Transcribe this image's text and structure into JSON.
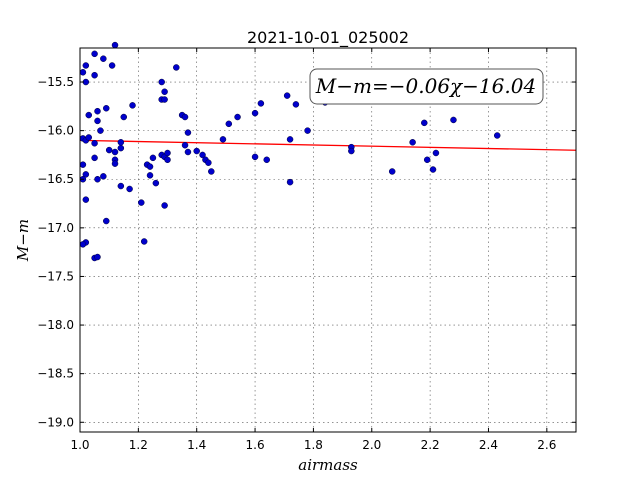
{
  "chart_data": {
    "type": "scatter",
    "title": "2021-10-01_025002",
    "xlabel": "airmass",
    "ylabel": "M−m",
    "annotation": "M−m=−0.06χ−16.04",
    "xlim": [
      1.0,
      2.7
    ],
    "ylim": [
      -19.1,
      -15.15
    ],
    "xticks": [
      1.0,
      1.2,
      1.4,
      1.6,
      1.8,
      2.0,
      2.2,
      2.4,
      2.6
    ],
    "xtick_labels": [
      "1.0",
      "1.2",
      "1.4",
      "1.6",
      "1.8",
      "2.0",
      "2.2",
      "2.4",
      "2.6"
    ],
    "yticks": [
      -15.5,
      -16.0,
      -16.5,
      -17.0,
      -17.5,
      -18.0,
      -18.5,
      -19.0
    ],
    "ytick_labels": [
      "−15.5",
      "−16.0",
      "−16.5",
      "−17.0",
      "−17.5",
      "−18.0",
      "−18.5",
      "−19.0"
    ],
    "grid": true,
    "colors": {
      "points": "#0000cc",
      "fit": "#ff0000"
    },
    "fit_line": {
      "slope": -0.06,
      "intercept": -16.04
    },
    "points": [
      [
        1.01,
        -15.4
      ],
      [
        1.02,
        -15.33
      ],
      [
        1.02,
        -15.5
      ],
      [
        1.03,
        -15.84
      ],
      [
        1.05,
        -15.21
      ],
      [
        1.05,
        -15.43
      ],
      [
        1.06,
        -15.9
      ],
      [
        1.06,
        -15.8
      ],
      [
        1.07,
        -16.0
      ],
      [
        1.08,
        -15.26
      ],
      [
        1.09,
        -15.77
      ],
      [
        1.11,
        -15.33
      ],
      [
        1.12,
        -15.12
      ],
      [
        1.01,
        -16.08
      ],
      [
        1.02,
        -16.1
      ],
      [
        1.03,
        -16.07
      ],
      [
        1.05,
        -16.13
      ],
      [
        1.05,
        -16.28
      ],
      [
        1.01,
        -16.35
      ],
      [
        1.02,
        -16.45
      ],
      [
        1.01,
        -16.5
      ],
      [
        1.06,
        -16.5
      ],
      [
        1.08,
        -16.47
      ],
      [
        1.1,
        -16.2
      ],
      [
        1.12,
        -16.22
      ],
      [
        1.12,
        -16.3
      ],
      [
        1.12,
        -16.34
      ],
      [
        1.14,
        -16.18
      ],
      [
        1.14,
        -16.12
      ],
      [
        1.15,
        -15.86
      ],
      [
        1.14,
        -16.57
      ],
      [
        1.17,
        -16.6
      ],
      [
        1.02,
        -16.71
      ],
      [
        1.09,
        -16.93
      ],
      [
        1.02,
        -17.15
      ],
      [
        1.01,
        -17.17
      ],
      [
        1.05,
        -17.31
      ],
      [
        1.06,
        -17.3
      ],
      [
        1.18,
        -15.74
      ],
      [
        1.21,
        -16.74
      ],
      [
        1.22,
        -17.14
      ],
      [
        1.23,
        -16.35
      ],
      [
        1.24,
        -16.37
      ],
      [
        1.24,
        -16.46
      ],
      [
        1.25,
        -16.28
      ],
      [
        1.26,
        -16.54
      ],
      [
        1.28,
        -16.25
      ],
      [
        1.28,
        -15.68
      ],
      [
        1.28,
        -15.5
      ],
      [
        1.29,
        -15.6
      ],
      [
        1.29,
        -15.68
      ],
      [
        1.29,
        -16.27
      ],
      [
        1.3,
        -16.23
      ],
      [
        1.3,
        -16.3
      ],
      [
        1.29,
        -16.77
      ],
      [
        1.33,
        -15.35
      ],
      [
        1.35,
        -15.84
      ],
      [
        1.36,
        -15.86
      ],
      [
        1.36,
        -16.15
      ],
      [
        1.37,
        -16.02
      ],
      [
        1.37,
        -16.22
      ],
      [
        1.4,
        -16.21
      ],
      [
        1.42,
        -16.25
      ],
      [
        1.43,
        -16.3
      ],
      [
        1.44,
        -16.33
      ],
      [
        1.45,
        -16.42
      ],
      [
        1.49,
        -16.09
      ],
      [
        1.51,
        -15.93
      ],
      [
        1.54,
        -15.86
      ],
      [
        1.6,
        -15.82
      ],
      [
        1.6,
        -16.27
      ],
      [
        1.62,
        -15.72
      ],
      [
        1.64,
        -16.3
      ],
      [
        1.71,
        -15.64
      ],
      [
        1.72,
        -16.09
      ],
      [
        1.72,
        -16.53
      ],
      [
        1.74,
        -15.73
      ],
      [
        1.78,
        -16.0
      ],
      [
        1.84,
        -15.71
      ],
      [
        1.93,
        -16.17
      ],
      [
        1.93,
        -16.21
      ],
      [
        2.07,
        -16.42
      ],
      [
        2.14,
        -16.12
      ],
      [
        2.18,
        -15.92
      ],
      [
        2.19,
        -16.3
      ],
      [
        2.21,
        -16.4
      ],
      [
        2.22,
        -16.23
      ],
      [
        2.28,
        -15.89
      ],
      [
        2.43,
        -16.05
      ]
    ]
  }
}
